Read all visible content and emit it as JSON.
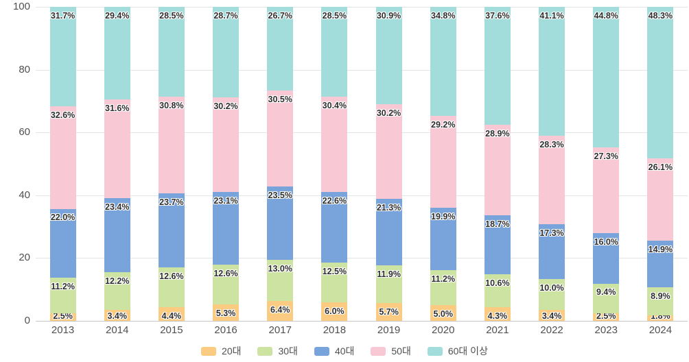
{
  "chart_data": {
    "type": "bar",
    "stacked": true,
    "percent_stack": true,
    "title": "",
    "xlabel": "",
    "ylabel": "",
    "grid": true,
    "label_suffix": "%",
    "categories": [
      "2013",
      "2014",
      "2015",
      "2016",
      "2017",
      "2018",
      "2019",
      "2020",
      "2021",
      "2022",
      "2023",
      "2024"
    ],
    "series": [
      {
        "name": "20대",
        "color": "#facb80",
        "values": [
          2.5,
          3.4,
          4.4,
          5.3,
          6.4,
          6.0,
          5.7,
          5.0,
          4.3,
          3.4,
          2.5,
          1.8
        ]
      },
      {
        "name": "30대",
        "color": "#cde3a1",
        "values": [
          11.2,
          12.2,
          12.6,
          12.6,
          13.0,
          12.5,
          11.9,
          11.2,
          10.6,
          10.0,
          9.4,
          8.9
        ]
      },
      {
        "name": "40대",
        "color": "#79a3db",
        "values": [
          22.0,
          23.4,
          23.7,
          23.1,
          23.5,
          22.6,
          21.3,
          19.9,
          18.7,
          17.3,
          16.0,
          14.9
        ]
      },
      {
        "name": "50대",
        "color": "#f9c8d5",
        "values": [
          32.6,
          31.6,
          30.8,
          30.2,
          30.5,
          30.4,
          30.2,
          29.2,
          28.9,
          28.3,
          27.3,
          26.1
        ]
      },
      {
        "name": "60대 이상",
        "color": "#a2dddb",
        "values": [
          31.7,
          29.4,
          28.5,
          28.7,
          26.7,
          28.5,
          30.9,
          34.8,
          37.6,
          41.1,
          44.8,
          48.3
        ]
      }
    ],
    "y_axis": {
      "min": 0,
      "max": 100,
      "ticks": [
        0,
        20,
        40,
        60,
        80,
        100
      ],
      "tick_labels": [
        "0",
        "20",
        "40",
        "60",
        "80",
        "100"
      ]
    },
    "legend": {
      "position": "bottom",
      "labels": [
        "20대",
        "30대",
        "40대",
        "50대",
        "60대 이상"
      ]
    },
    "colors": {
      "gridline": "#e4e4e4",
      "baseline": "#c6c6c6",
      "axis_text": "#4f4f4f",
      "data_label": "#2e2e2e",
      "background": "#ffffff"
    }
  }
}
